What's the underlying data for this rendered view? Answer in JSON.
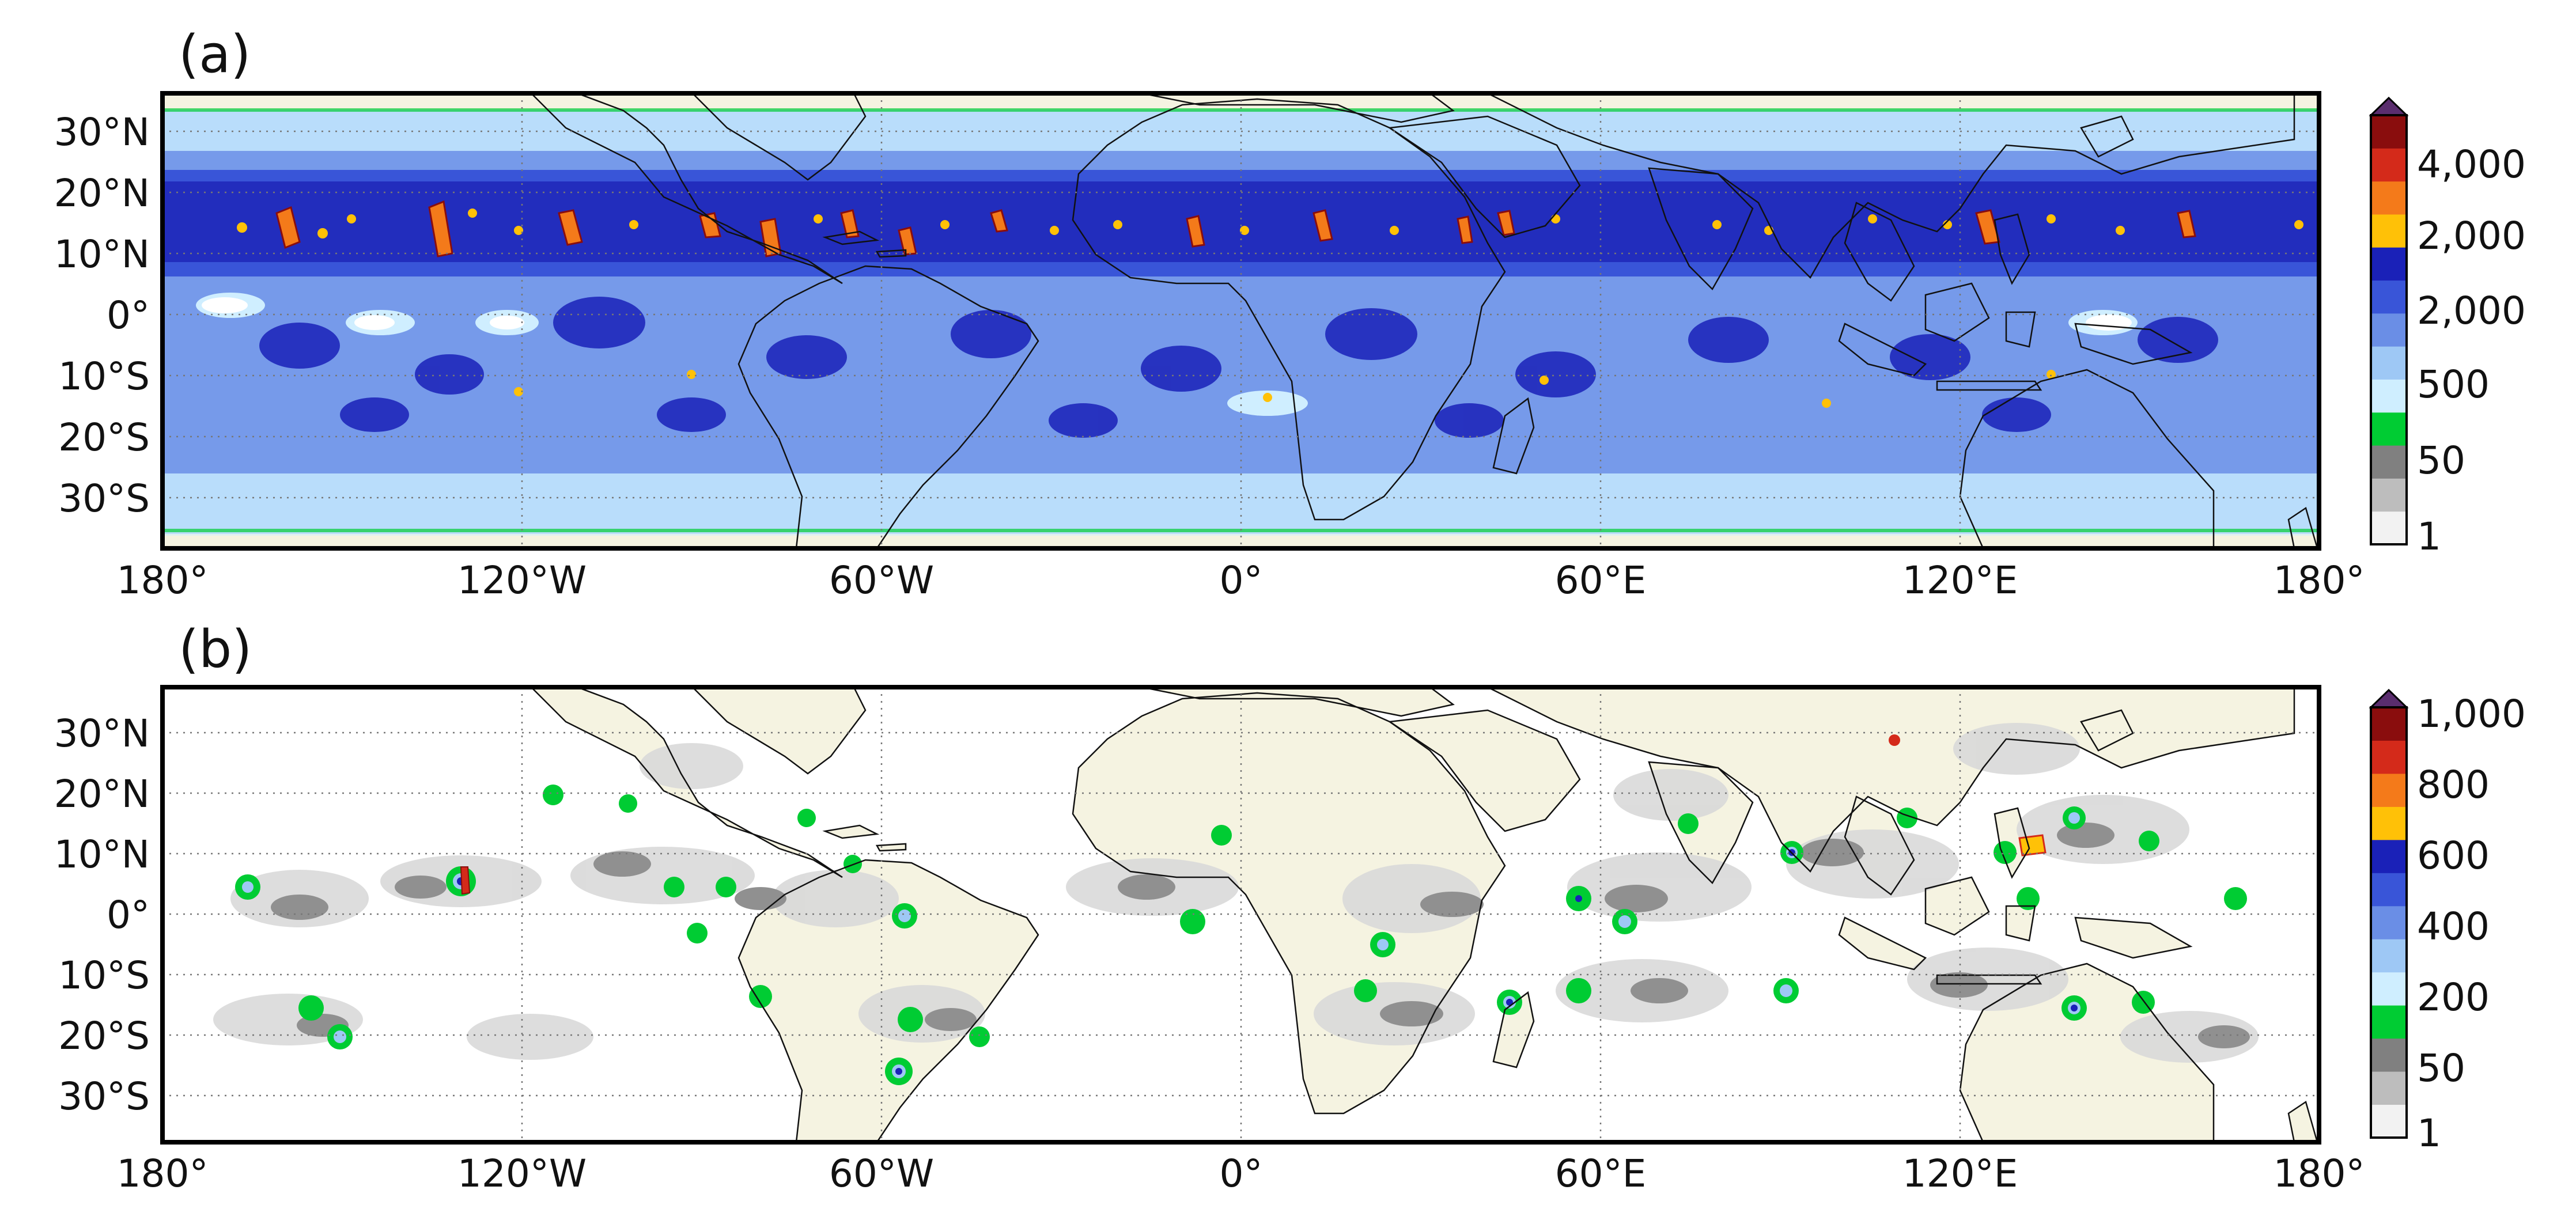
{
  "panels": [
    {
      "label": "(a)",
      "lat_ticks": [
        "30°N",
        "20°N",
        "10°N",
        "0°",
        "10°S",
        "20°S",
        "30°S"
      ],
      "lon_ticks": [
        "180°",
        "120°W",
        "60°W",
        "0°",
        "60°E",
        "120°E",
        "180°"
      ],
      "colorbar": {
        "labels": [
          "4,000",
          "2,000",
          "2,000",
          "500",
          "50",
          "1"
        ],
        "colors": [
          "#f2f2f2",
          "#bdbdbd",
          "#808080",
          "#00cc33",
          "#cfeeff",
          "#9ec8f5",
          "#6a8ee6",
          "#3955d8",
          "#1a21b8",
          "#ffc107",
          "#f47a1a",
          "#d42a1a",
          "#8a0d0d"
        ],
        "extend_color": "#5a2d6e"
      }
    },
    {
      "label": "(b)",
      "lat_ticks": [
        "30°N",
        "20°N",
        "10°N",
        "0°",
        "10°S",
        "20°S",
        "30°S"
      ],
      "lon_ticks": [
        "180°",
        "120°W",
        "60°W",
        "0°",
        "60°E",
        "120°E",
        "180°"
      ],
      "colorbar": {
        "labels": [
          "1,000",
          "800",
          "600",
          "400",
          "200",
          "50",
          "1"
        ],
        "colors": [
          "#f2f2f2",
          "#bdbdbd",
          "#808080",
          "#00cc33",
          "#cfeeff",
          "#9ec8f5",
          "#6a8ee6",
          "#3955d8",
          "#1a21b8",
          "#ffc107",
          "#f47a1a",
          "#d42a1a",
          "#8a0d0d"
        ],
        "extend_color": "#5a2d6e"
      }
    }
  ],
  "map": {
    "lon_range": [
      -180,
      180
    ],
    "lat_range": [
      -38,
      38
    ],
    "grid": "dotted at 60° longitude, 10° latitude",
    "land_color": "#f5f3e1"
  }
}
